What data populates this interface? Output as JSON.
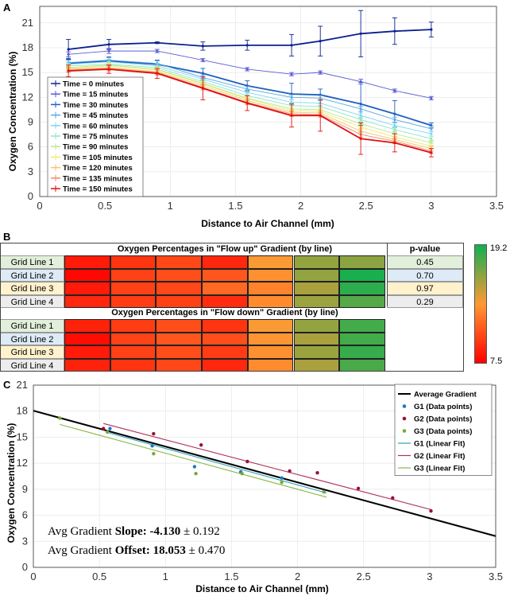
{
  "panels": {
    "a": "A",
    "b": "B",
    "c": "C"
  },
  "colors": {
    "heat_low": "#ff0000",
    "heat_mid": "#ff9933",
    "heat_high": "#11b050"
  },
  "chart_data": [
    {
      "type": "line",
      "panel": "A",
      "xlabel": "Distance to Air Channel (mm)",
      "ylabel": "Oxygen Concentration (%)",
      "xlim": [
        0,
        3.5
      ],
      "ylim": [
        0,
        23
      ],
      "xticks": [
        0,
        0.5,
        1,
        1.5,
        2,
        2.5,
        3,
        3.5
      ],
      "yticks": [
        0,
        3,
        6,
        9,
        12,
        15,
        18,
        21
      ],
      "x": [
        0.22,
        0.53,
        0.9,
        1.25,
        1.59,
        1.93,
        2.15,
        2.46,
        2.72,
        3.0
      ],
      "legend_position": "left",
      "series": [
        {
          "name": "Time = 0 minutes",
          "color": "#0a1f8f",
          "values": [
            17.8,
            18.4,
            18.6,
            18.2,
            18.3,
            18.3,
            18.8,
            19.7,
            20.0,
            20.2
          ],
          "errors": [
            1.2,
            0.6,
            0.1,
            0.5,
            0.6,
            1.3,
            1.8,
            2.8,
            1.6,
            0.9
          ]
        },
        {
          "name": "Time = 15 minutes",
          "color": "#5b5bd6",
          "values": [
            17.2,
            17.6,
            17.6,
            16.5,
            15.4,
            14.8,
            15.0,
            13.9,
            12.8,
            11.9
          ],
          "errors": [
            0.3,
            0.3,
            0.2,
            0.2,
            0.2,
            0.2,
            0.2,
            0.3,
            0.2,
            0.2
          ]
        },
        {
          "name": "Time = 30 minutes",
          "color": "#1f5fbf",
          "values": [
            16.1,
            16.4,
            16.0,
            14.9,
            13.4,
            12.4,
            12.3,
            11.2,
            10.0,
            8.6
          ],
          "errors": [
            0.6,
            0.5,
            0.5,
            0.6,
            0.6,
            1.3,
            0.7,
            2.6,
            1.6,
            0.3
          ]
        },
        {
          "name": "Time = 45 minutes",
          "color": "#5aa7e0",
          "values": [
            16.2,
            16.5,
            16.1,
            14.4,
            13.0,
            12.0,
            11.9,
            10.6,
            9.3,
            8.2
          ],
          "errors": [
            0.3,
            0.3,
            0.3,
            0.3,
            0.3,
            0.3,
            0.3,
            0.3,
            0.3,
            0.3
          ]
        },
        {
          "name": "Time = 60 minutes",
          "color": "#7fd6f0",
          "values": [
            16.0,
            16.3,
            15.8,
            14.2,
            12.6,
            11.4,
            11.3,
            9.8,
            8.6,
            7.6
          ],
          "errors": [
            0.3,
            0.3,
            0.3,
            0.3,
            0.3,
            0.3,
            0.3,
            0.3,
            0.3,
            0.3
          ]
        },
        {
          "name": "Time = 75 minutes",
          "color": "#8ee5c9",
          "values": [
            15.8,
            16.0,
            15.6,
            13.9,
            12.2,
            11.0,
            10.9,
            9.3,
            8.1,
            7.0
          ],
          "errors": [
            0.3,
            0.3,
            0.3,
            0.3,
            0.3,
            0.3,
            0.3,
            0.3,
            0.3,
            0.3
          ]
        },
        {
          "name": "Time = 90 minutes",
          "color": "#b9ea8c",
          "values": [
            15.6,
            15.9,
            15.4,
            13.7,
            11.9,
            10.6,
            10.5,
            8.8,
            7.6,
            6.5
          ],
          "errors": [
            0.3,
            0.3,
            0.3,
            0.3,
            0.3,
            0.3,
            0.3,
            0.3,
            0.3,
            0.3
          ]
        },
        {
          "name": "Time = 105 minutes",
          "color": "#f0ea6a",
          "values": [
            15.5,
            15.8,
            15.3,
            13.6,
            11.8,
            10.4,
            10.3,
            8.4,
            7.2,
            6.1
          ],
          "errors": [
            0.3,
            0.3,
            0.3,
            0.3,
            0.3,
            0.3,
            0.3,
            0.3,
            0.3,
            0.3
          ]
        },
        {
          "name": "Time = 120 minutes",
          "color": "#f5c36a",
          "values": [
            15.4,
            15.6,
            15.1,
            13.4,
            11.6,
            10.2,
            10.1,
            7.9,
            6.9,
            5.8
          ],
          "errors": [
            0.3,
            0.3,
            0.3,
            0.3,
            0.3,
            0.3,
            0.3,
            0.3,
            0.3,
            0.3
          ]
        },
        {
          "name": "Time = 135 minutes",
          "color": "#f08a6a",
          "values": [
            15.3,
            15.5,
            15.0,
            13.2,
            11.4,
            10.0,
            9.9,
            7.5,
            6.7,
            5.5
          ],
          "errors": [
            0.3,
            0.3,
            0.3,
            0.3,
            0.3,
            0.3,
            0.3,
            0.3,
            0.3,
            0.3
          ]
        },
        {
          "name": "Time = 150 minutes",
          "color": "#e01010",
          "values": [
            15.2,
            15.4,
            14.9,
            13.1,
            11.3,
            9.8,
            9.8,
            7.0,
            6.5,
            5.3
          ],
          "errors": [
            0.7,
            0.5,
            0.6,
            1.4,
            0.9,
            1.4,
            1.9,
            1.9,
            1.1,
            0.5
          ]
        }
      ]
    },
    {
      "type": "heatmap",
      "panel": "B",
      "pvalue_header": "p-value",
      "colorbar": {
        "min": 7.5,
        "max": 19.2,
        "min_label": "7.5",
        "max_label": "19.2"
      },
      "tables": [
        {
          "title": "Oxygen Percentages in \"Flow up\" Gradient (by line)",
          "rows": [
            {
              "label": "Grid Line 1",
              "pvalue": "0.45",
              "values": [
                8.5,
                9.5,
                10.2,
                9.0,
                13.5,
                16.0,
                16.2
              ]
            },
            {
              "label": "Grid Line 2",
              "pvalue": "0.70",
              "values": [
                7.8,
                10.0,
                10.5,
                10.8,
                13.0,
                16.0,
                19.0
              ]
            },
            {
              "label": "Grid Line 3",
              "pvalue": "0.97",
              "values": [
                8.5,
                10.0,
                10.2,
                11.5,
                12.5,
                15.5,
                18.5
              ]
            },
            {
              "label": "Grid Line 4",
              "pvalue": "0.29",
              "values": [
                9.0,
                9.8,
                10.0,
                9.2,
                12.8,
                15.8,
                17.5
              ]
            }
          ]
        },
        {
          "title": "Oxygen Percentages in \"Flow down\" Gradient (by line)",
          "rows": [
            {
              "label": "Grid Line 1",
              "values": [
                8.8,
                9.8,
                10.5,
                9.5,
                13.5,
                16.0,
                18.0
              ]
            },
            {
              "label": "Grid Line 2",
              "values": [
                8.0,
                10.0,
                10.8,
                10.5,
                13.2,
                15.5,
                18.0
              ]
            },
            {
              "label": "Grid Line 3",
              "values": [
                8.5,
                10.0,
                10.5,
                9.8,
                13.0,
                15.8,
                18.3
              ]
            },
            {
              "label": "Grid Line 4",
              "values": [
                8.8,
                9.5,
                10.2,
                9.0,
                12.8,
                15.5,
                17.8
              ]
            }
          ]
        }
      ],
      "row_colors": [
        "#e2efda",
        "#ddebf7",
        "#fff2cc",
        "#ededed"
      ]
    },
    {
      "type": "scatter",
      "panel": "C",
      "xlabel": "Distance to Air Channel (mm)",
      "ylabel": "Oxygen Concentration (%)",
      "xlim": [
        0,
        3.5
      ],
      "ylim": [
        0,
        21
      ],
      "xticks": [
        0,
        0.5,
        1,
        1.5,
        2,
        2.5,
        3,
        3.5
      ],
      "yticks": [
        0,
        3,
        6,
        9,
        12,
        15,
        18,
        21
      ],
      "legend_position": "top-right",
      "average_line": {
        "name": "Average Gradient",
        "slope": -4.13,
        "offset": 18.053,
        "color": "#000000",
        "x_range": [
          0,
          3.5
        ]
      },
      "groups": [
        {
          "points_name": "G1 (Data points)",
          "fit_name": "G1 (Linear Fit)",
          "color": "#1f77c4",
          "fit_color": "#2aa0b0",
          "x": [
            0.58,
            0.9,
            1.22,
            1.57,
            1.88,
            2.2
          ],
          "y": [
            16.0,
            14.0,
            11.6,
            11.0,
            10.3,
            8.7
          ],
          "fit_x": [
            0.55,
            2.22
          ],
          "fit_slope": -4.2,
          "fit_offset": 17.9
        },
        {
          "points_name": "G2 (Data points)",
          "fit_name": "G2 (Linear Fit)",
          "color": "#9b1030",
          "fit_color": "#b0305a",
          "x": [
            0.53,
            0.91,
            1.27,
            1.62,
            1.94,
            2.15,
            2.46,
            2.72,
            3.01
          ],
          "y": [
            16.0,
            15.4,
            14.1,
            12.2,
            11.1,
            10.9,
            9.1,
            8.0,
            6.5
          ],
          "fit_x": [
            0.53,
            3.01
          ],
          "fit_slope": -4.0,
          "fit_offset": 18.7
        },
        {
          "points_name": "G3 (Data points)",
          "fit_name": "G3 (Linear Fit)",
          "color": "#7aa838",
          "fit_color": "#8ab848",
          "x": [
            0.2,
            0.56,
            0.91,
            1.23,
            1.58,
            1.88,
            2.2
          ],
          "y": [
            17.2,
            15.6,
            13.1,
            10.8,
            10.8,
            9.8,
            8.7
          ],
          "fit_x": [
            0.2,
            2.22
          ],
          "fit_slope": -4.15,
          "fit_offset": 17.3
        }
      ],
      "annotations": {
        "slope_label": "Avg Gradient ",
        "slope_key": "Slope:",
        "slope_value": " -4.130",
        "slope_err": " ± 0.192",
        "offset_label": "Avg Gradient ",
        "offset_key": "Offset:",
        "offset_value": " 18.053",
        "offset_err": " ± 0.470"
      }
    }
  ]
}
